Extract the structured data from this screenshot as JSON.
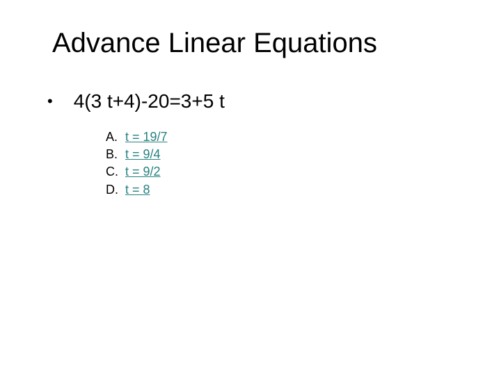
{
  "title": "Advance Linear Equations",
  "equation": "4(3 t+4)-20=3+5 t",
  "options": [
    {
      "letter": "A.",
      "text": "t = 19/7"
    },
    {
      "letter": "B.",
      "text": "t = 9/4"
    },
    {
      "letter": "C.",
      "text": "t = 9/2"
    },
    {
      "letter": "D.",
      "text": "t = 8"
    }
  ],
  "colors": {
    "link": "#267f7f",
    "text": "#000000",
    "background": "#ffffff"
  }
}
